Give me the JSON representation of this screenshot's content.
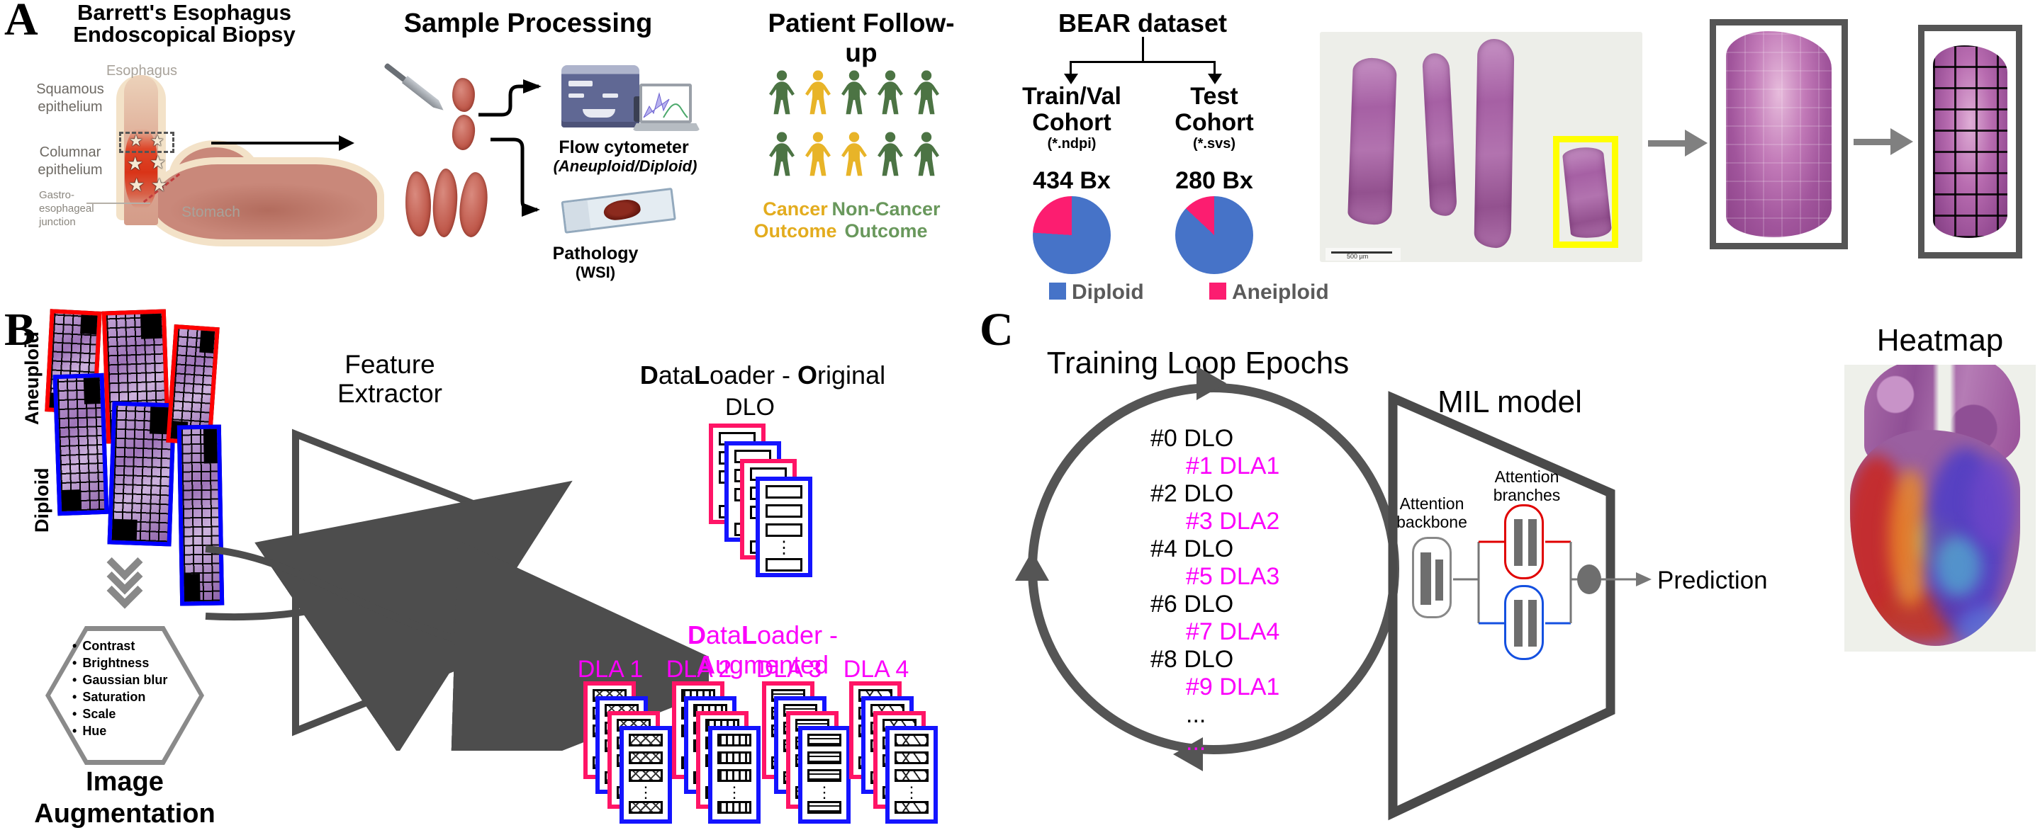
{
  "colors": {
    "pie_blue": "#4673C8",
    "pie_pink": "#FC1D70",
    "magenta": "#FB00FB",
    "person_green": "#4C7444",
    "person_yellow": "#E8B428",
    "cancer_label": "#E3AC1E",
    "noncancer_label": "#69985C",
    "arrow_gray": "#4D4D4D",
    "card_pink": "#FF1466",
    "card_blue": "#1414FF",
    "tile_red": "#FF0000",
    "tile_blue": "#0000FF"
  },
  "panel_a": {
    "label": "A",
    "title_line1": "Barrett's Esophagus",
    "title_line2": "Endoscopical Biopsy",
    "anatomy": {
      "esophagus": "Esophagus",
      "squamous_1": "Squamous",
      "squamous_2": "epithelium",
      "columnar_1": "Columnar",
      "columnar_2": "epithelium",
      "gej_1": "Gastro-",
      "gej_2": "esophageal",
      "gej_3": "junction",
      "stomach": "Stomach"
    },
    "sample_processing": {
      "title": "Sample Processing",
      "flow_label": "Flow cytometer",
      "flow_sub": "(Aneuploid/Diploid)",
      "path_label": "Pathology",
      "path_sub": "(WSI)"
    },
    "patient_followup": {
      "title": "Patient Follow-up",
      "rows": [
        [
          "green",
          "yellow",
          "green",
          "green",
          "green"
        ],
        [
          "green",
          "yellow",
          "yellow",
          "green",
          "green"
        ]
      ],
      "cancer_1": "Cancer",
      "cancer_2": "Outcome",
      "noncancer_1": "Non-Cancer",
      "noncancer_2": "Outcome"
    },
    "bear": {
      "title": "BEAR dataset",
      "train_1": "Train/Val",
      "train_2": "Cohort",
      "train_fmt": "(*.ndpi)",
      "train_count": "434 Bx",
      "train_aneuploid_pct": 24,
      "test_1": "Test",
      "test_2": "Cohort",
      "test_fmt": "(*.svs)",
      "test_count": "280 Bx",
      "test_aneuploid_pct": 13,
      "legend_diploid": "Diploid",
      "legend_aneuploid": "Aneiploid"
    },
    "wsi": {
      "scale_text": "500 µm"
    }
  },
  "panel_b": {
    "label": "B",
    "aneuploid": "Aneuploid",
    "diploid": "Diploid",
    "feature_1": "Feature",
    "feature_2": "Extractor",
    "augmentation_items": [
      "Contrast",
      "Brightness",
      "Gaussian blur",
      "Saturation",
      "Scale",
      "Hue"
    ],
    "augmentation_1": "Image",
    "augmentation_2": "Augmentation",
    "dlo": {
      "t1": "D",
      "t2": "ata",
      "t3": "L",
      "t4": "oader - ",
      "t5": "O",
      "t6": "riginal",
      "stack": "DLO",
      "cards": [
        "pink",
        "blue",
        "pink",
        "blue"
      ]
    },
    "dla": {
      "t1": "D",
      "t2": "ata",
      "t3": "L",
      "t4": "oader - ",
      "t5": "A",
      "t6": "ugmented",
      "cards": [
        "pink",
        "blue",
        "pink",
        "blue"
      ],
      "stacks": [
        {
          "label": "DLA 1",
          "pattern": "diamond"
        },
        {
          "label": "DLA 2",
          "pattern": "vlines"
        },
        {
          "label": "DLA 3",
          "pattern": "waves"
        },
        {
          "label": "DLA 4",
          "pattern": "diag"
        }
      ]
    }
  },
  "panel_c": {
    "label": "C",
    "title": "Training Loop Epochs",
    "epochs": [
      {
        "text": "#0 DLO",
        "magenta": false,
        "indent": false
      },
      {
        "text": "#1 DLA1",
        "magenta": true,
        "indent": true
      },
      {
        "text": "#2 DLO",
        "magenta": false,
        "indent": false
      },
      {
        "text": "#3 DLA2",
        "magenta": true,
        "indent": true
      },
      {
        "text": "#4 DLO",
        "magenta": false,
        "indent": false
      },
      {
        "text": "#5 DLA3",
        "magenta": true,
        "indent": true
      },
      {
        "text": "#6 DLO",
        "magenta": false,
        "indent": false
      },
      {
        "text": "#7 DLA4",
        "magenta": true,
        "indent": true
      },
      {
        "text": "#8 DLO",
        "magenta": false,
        "indent": false
      },
      {
        "text": "#9 DLA1",
        "magenta": true,
        "indent": true
      },
      {
        "text": "...",
        "magenta": false,
        "indent": true
      },
      {
        "text": "...",
        "magenta": true,
        "indent": true
      }
    ],
    "mil": {
      "title": "MIL model",
      "backbone_1": "Attention",
      "backbone_2": "backbone",
      "branches_1": "Attention",
      "branches_2": "branches",
      "prediction": "Prediction"
    },
    "heatmap_title": "Heatmap"
  }
}
